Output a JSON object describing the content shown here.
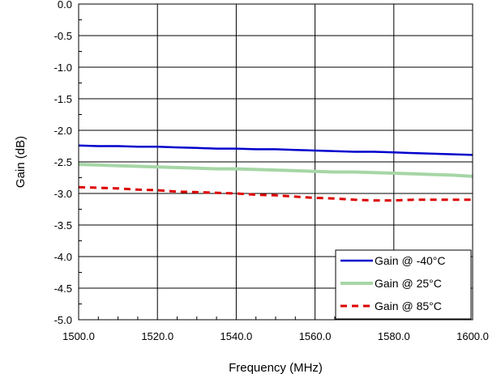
{
  "chart_data": {
    "type": "line",
    "xlabel": "Frequency (MHz)",
    "ylabel": "Gain (dB)",
    "xlim": [
      1500,
      1600
    ],
    "ylim": [
      -5.0,
      0.0
    ],
    "x_ticks": [
      1500,
      1520,
      1540,
      1560,
      1580,
      1600
    ],
    "x_tick_labels": [
      "1500.0",
      "1520.0",
      "1540.0",
      "1560.0",
      "1580.0",
      "1600.0"
    ],
    "y_ticks": [
      0.0,
      -0.5,
      -1.0,
      -1.5,
      -2.0,
      -2.5,
      -3.0,
      -3.5,
      -4.0,
      -4.5,
      -5.0
    ],
    "y_tick_labels": [
      "0.0",
      "-0.5",
      "-1.0",
      "-1.5",
      "-2.0",
      "-2.5",
      "-3.0",
      "-3.5",
      "-4.0",
      "-4.5",
      "-5.0"
    ],
    "grid": true,
    "legend_position": "bottom-right",
    "series": [
      {
        "name": "Gain @ -40°C",
        "color": "#0000cc",
        "style": "solid",
        "x": [
          1500,
          1505,
          1510,
          1515,
          1520,
          1525,
          1530,
          1535,
          1540,
          1545,
          1550,
          1555,
          1560,
          1565,
          1570,
          1575,
          1580,
          1585,
          1590,
          1595,
          1600
        ],
        "y": [
          -2.24,
          -2.25,
          -2.25,
          -2.26,
          -2.26,
          -2.27,
          -2.28,
          -2.29,
          -2.29,
          -2.3,
          -2.3,
          -2.31,
          -2.32,
          -2.33,
          -2.34,
          -2.34,
          -2.35,
          -2.36,
          -2.37,
          -2.38,
          -2.39
        ]
      },
      {
        "name": "Gain @ 25°C",
        "color": "#a6d6a6",
        "style": "solid",
        "x": [
          1500,
          1505,
          1510,
          1515,
          1520,
          1525,
          1530,
          1535,
          1540,
          1545,
          1550,
          1555,
          1560,
          1565,
          1570,
          1575,
          1580,
          1585,
          1590,
          1595,
          1600
        ],
        "y": [
          -2.54,
          -2.55,
          -2.56,
          -2.57,
          -2.58,
          -2.59,
          -2.6,
          -2.61,
          -2.61,
          -2.62,
          -2.63,
          -2.64,
          -2.65,
          -2.66,
          -2.66,
          -2.67,
          -2.68,
          -2.69,
          -2.7,
          -2.71,
          -2.73
        ]
      },
      {
        "name": "Gain @ 85°C",
        "color": "#dd0000",
        "style": "dashed",
        "x": [
          1500,
          1505,
          1510,
          1515,
          1520,
          1525,
          1530,
          1535,
          1540,
          1545,
          1550,
          1555,
          1560,
          1565,
          1570,
          1575,
          1580,
          1585,
          1590,
          1595,
          1600
        ],
        "y": [
          -2.9,
          -2.91,
          -2.92,
          -2.94,
          -2.95,
          -2.97,
          -2.98,
          -2.99,
          -3.0,
          -3.02,
          -3.03,
          -3.05,
          -3.07,
          -3.08,
          -3.1,
          -3.11,
          -3.11,
          -3.1,
          -3.1,
          -3.1,
          -3.1
        ]
      }
    ]
  }
}
